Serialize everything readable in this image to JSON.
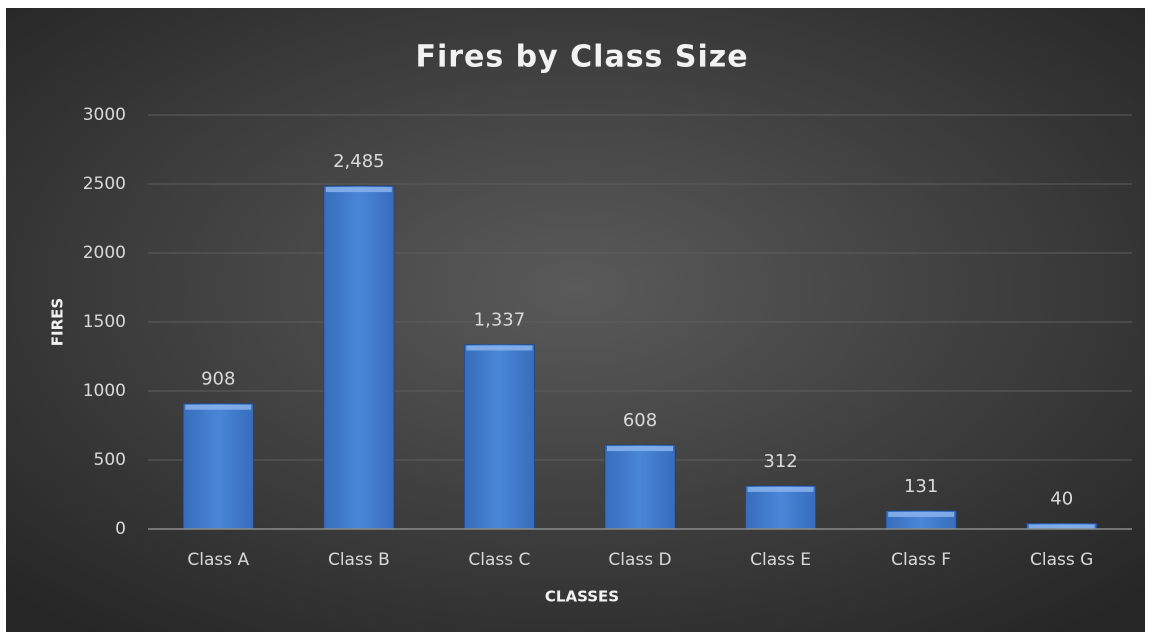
{
  "chart_data": {
    "type": "bar",
    "title": "Fires by Class Size",
    "x_label": "CLASSES",
    "y_label": "FIRES",
    "categories": [
      "Class A",
      "Class B",
      "Class C",
      "Class D",
      "Class E",
      "Class F",
      "Class G"
    ],
    "values": [
      908,
      2485,
      1337,
      608,
      312,
      131,
      40
    ],
    "value_labels": [
      "908",
      "2,485",
      "1,337",
      "608",
      "312",
      "131",
      "40"
    ],
    "color": "#4a86d8",
    "ylim": [
      0,
      3000
    ],
    "yticks": [
      0,
      500,
      1000,
      1500,
      2000,
      2500,
      3000
    ],
    "grid": true
  }
}
